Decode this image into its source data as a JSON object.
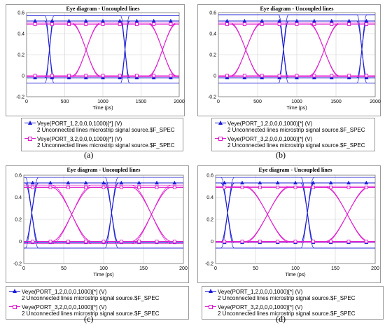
{
  "chart_data": [
    {
      "type": "line",
      "panel": "a",
      "title": "Eye diagram - Uncoupled lines",
      "xlabel": "Time (ps)",
      "ylabel": "",
      "xlim": [
        0,
        2000
      ],
      "ylim": [
        -0.2,
        0.6
      ],
      "xticks": [
        0,
        500,
        1000,
        1500,
        2000
      ],
      "yticks": [
        -0.2,
        0,
        0.2,
        0.4,
        0.6
      ],
      "grid": true,
      "legend_position": "below",
      "series": [
        {
          "name": "Veye(PORT_1,2,0,0,0,1000)[*] (V)",
          "source": "2 Unconnected lines microstrip signal source.$F_SPEC",
          "color": "#1c1cd6",
          "marker": "triangle",
          "high": 0.52,
          "low": -0.02,
          "overshoot_high": 0.57,
          "undershoot_low": -0.07,
          "crossings": [
            300,
            1290
          ],
          "crossing_width": 110
        },
        {
          "name": "Veye(PORT_3,2,0,0,0,1000)[*] (V)",
          "source": "2 Unconnected lines microstrip signal source.$F_SPEC",
          "color": "#e01ccf",
          "marker": "square",
          "high": 0.49,
          "low": 0.0,
          "overshoot_high": 0.5,
          "undershoot_low": -0.01,
          "crossings": [
            780,
            1780
          ],
          "crossing_width": 360
        }
      ]
    },
    {
      "type": "line",
      "panel": "b",
      "title": "Eye diagram - Uncoupled lines",
      "xlabel": "Time (ps)",
      "ylabel": "",
      "xlim": [
        0,
        2000
      ],
      "ylim": [
        -0.2,
        0.6
      ],
      "xticks": [
        0,
        500,
        1000,
        1500,
        2000
      ],
      "yticks": [
        -0.2,
        0,
        0.2,
        0.4,
        0.6
      ],
      "grid": true,
      "legend_position": "below",
      "series": [
        {
          "name": "Veye(PORT_1,2,0,0,0,1000)[*] (V)",
          "source": "2 Unconnected lines microstrip signal source.$F_SPEC",
          "color": "#1c1cd6",
          "marker": "triangle",
          "high": 0.52,
          "low": -0.02,
          "overshoot_high": 0.58,
          "undershoot_low": -0.07,
          "crossings": [
            830,
            1830
          ],
          "crossing_width": 120
        },
        {
          "name": "Veye(PORT_3,2,0,0,0,1000)[*] (V)",
          "source": "2 Unconnected lines microstrip signal source.$F_SPEC",
          "color": "#e01ccf",
          "marker": "square",
          "high": 0.49,
          "low": 0.0,
          "overshoot_high": 0.5,
          "undershoot_low": -0.01,
          "crossings": [
            350,
            1350
          ],
          "crossing_width": 380
        }
      ]
    },
    {
      "type": "line",
      "panel": "c",
      "title": "Eye diagram - Uncoupled lines",
      "xlabel": "Time (ps)",
      "ylabel": "",
      "xlim": [
        0,
        200
      ],
      "ylim": [
        -0.2,
        0.6
      ],
      "xticks": [
        0,
        50,
        100,
        150,
        200
      ],
      "yticks": [
        -0.2,
        0,
        0.2,
        0.4,
        0.6
      ],
      "grid": true,
      "legend_position": "below",
      "series": [
        {
          "name": "Veye(PORT_1,2,0,0,0,1000)[*] (V)",
          "source": "2 Unconnected lines microstrip signal source.$F_SPEC",
          "color": "#1c1cd6",
          "marker": "triangle",
          "high": 0.53,
          "low": -0.01,
          "overshoot_high": 0.58,
          "undershoot_low": -0.06,
          "crossings": [
            10,
            110
          ],
          "crossing_width": 16
        },
        {
          "name": "Veye(PORT_3,2,0,0,0,1000)[*] (V)",
          "source": "2 Unconnected lines microstrip signal source.$F_SPEC",
          "color": "#e01ccf",
          "marker": "square",
          "high": 0.49,
          "low": 0.0,
          "overshoot_high": 0.51,
          "undershoot_low": -0.02,
          "crossings": [
            60,
            160
          ],
          "crossing_width": 50
        }
      ]
    },
    {
      "type": "line",
      "panel": "d",
      "title": "Eye diagram - Uncoupled lines",
      "xlabel": "Time (ps)",
      "ylabel": "",
      "xlim": [
        0,
        200
      ],
      "ylim": [
        -0.2,
        0.6
      ],
      "xticks": [
        0,
        50,
        100,
        150,
        200
      ],
      "yticks": [
        -0.2,
        0,
        0.2,
        0.4,
        0.6
      ],
      "grid": true,
      "legend_position": "below",
      "series": [
        {
          "name": "Veye(PORT_1,2,0,0,0,1000)[*] (V)",
          "source": "2 Unconnected lines microstrip signal source.$F_SPEC",
          "color": "#1c1cd6",
          "marker": "triangle",
          "high": 0.53,
          "low": -0.01,
          "overshoot_high": 0.58,
          "undershoot_low": -0.06,
          "crossings": [
            15,
            115
          ],
          "crossing_width": 16
        },
        {
          "name": "Veye(PORT_3,2,0,0,0,1000)[*] (V)",
          "source": "2 Unconnected lines microstrip signal source.$F_SPEC",
          "color": "#e01ccf",
          "marker": "square",
          "high": 0.49,
          "low": 0.0,
          "overshoot_high": 0.5,
          "undershoot_low": -0.01,
          "crossings": [
            65,
            165
          ],
          "crossing_width": 55
        }
      ]
    }
  ],
  "captions": [
    "(a)",
    "(b)",
    "(c)",
    "(d)"
  ]
}
